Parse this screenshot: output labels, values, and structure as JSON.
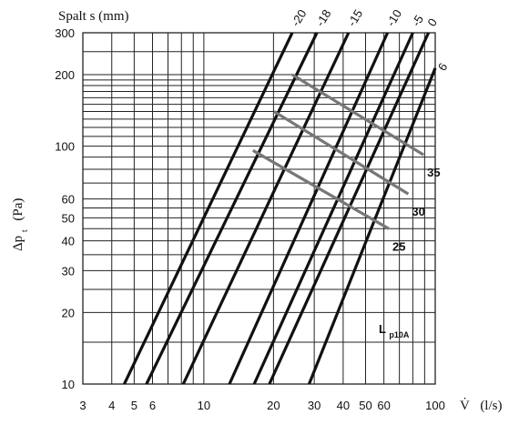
{
  "chart_data": {
    "type": "line",
    "title": "Spalt s (mm)",
    "xlabel": "V̇ (l/s)",
    "ylabel": "Δpt (Pa)",
    "x_scale": "log",
    "y_scale": "log",
    "xlim": [
      3,
      100
    ],
    "ylim": [
      10,
      300
    ],
    "x_ticks": [
      3,
      4,
      5,
      6,
      10,
      20,
      30,
      40,
      50,
      60,
      100
    ],
    "x_tick_labels": [
      "3",
      "4",
      "5",
      "6",
      "10",
      "20",
      "30",
      "40",
      "50",
      "60",
      "100"
    ],
    "y_ticks": [
      10,
      20,
      30,
      40,
      50,
      60,
      100,
      200,
      300
    ],
    "y_tick_labels": [
      "10",
      "20",
      "30",
      "40",
      "50",
      "60",
      "100",
      "200",
      "300"
    ],
    "grid": true,
    "gap_curves": [
      {
        "name": "-20",
        "points": [
          [
            4.53,
            10
          ],
          [
            24.1,
            300
          ]
        ]
      },
      {
        "name": "-18",
        "points": [
          [
            5.65,
            10
          ],
          [
            30.8,
            300
          ]
        ]
      },
      {
        "name": "-15",
        "points": [
          [
            8.15,
            10
          ],
          [
            42.2,
            300
          ]
        ]
      },
      {
        "name": "-10",
        "points": [
          [
            12.9,
            10
          ],
          [
            62.2,
            300
          ]
        ]
      },
      {
        "name": "-5",
        "points": [
          [
            16.5,
            10
          ],
          [
            80.0,
            300
          ]
        ]
      },
      {
        "name": "0",
        "points": [
          [
            19.2,
            10
          ],
          [
            93.5,
            300
          ]
        ]
      },
      {
        "name": "6",
        "points": [
          [
            28.5,
            10
          ],
          [
            100,
            213
          ]
        ]
      }
    ],
    "sound_level_curves": [
      {
        "name": "35",
        "points": [
          [
            24.1,
            200
          ],
          [
            89.0,
            92
          ]
        ]
      },
      {
        "name": "30",
        "points": [
          [
            20.1,
            140
          ],
          [
            76.5,
            63
          ]
        ]
      },
      {
        "name": "25",
        "points": [
          [
            16.3,
            96
          ],
          [
            63.0,
            45
          ]
        ]
      }
    ],
    "annotations": {
      "gap_label": "Spalt s (mm)",
      "level_label_main": "L",
      "level_label_sub": "p10A"
    }
  },
  "labels": {
    "y_axis_main": "Δp",
    "y_axis_sub": "t",
    "y_axis_unit": "(Pa)",
    "x_axis_main": "V̇",
    "x_axis_unit": "(l/s)"
  },
  "colors": {
    "grid": "#222222",
    "curve": "#111111",
    "sound_curve": "#777777"
  }
}
